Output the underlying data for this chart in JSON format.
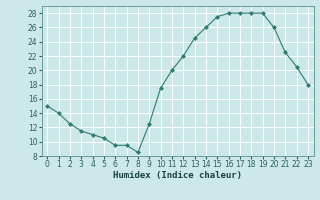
{
  "x": [
    0,
    1,
    2,
    3,
    4,
    5,
    6,
    7,
    8,
    9,
    10,
    11,
    12,
    13,
    14,
    15,
    16,
    17,
    18,
    19,
    20,
    21,
    22,
    23
  ],
  "y": [
    15,
    14,
    12.5,
    11.5,
    11,
    10.5,
    9.5,
    9.5,
    8.5,
    12.5,
    17.5,
    20,
    22,
    24.5,
    26,
    27.5,
    28,
    28,
    28,
    28,
    26,
    22.5,
    20.5,
    18
  ],
  "line_color": "#2e7d6e",
  "marker": "D",
  "marker_size": 2.0,
  "bg_color": "#cce8e8",
  "grid_color": "#b0d8d8",
  "xlabel": "Humidex (Indice chaleur)",
  "xlim": [
    -0.5,
    23.5
  ],
  "ylim": [
    8,
    29
  ],
  "yticks": [
    8,
    10,
    12,
    14,
    16,
    18,
    20,
    22,
    24,
    26,
    28
  ],
  "xticks": [
    0,
    1,
    2,
    3,
    4,
    5,
    6,
    7,
    8,
    9,
    10,
    11,
    12,
    13,
    14,
    15,
    16,
    17,
    18,
    19,
    20,
    21,
    22,
    23
  ],
  "tick_label_fontsize": 5.5,
  "xlabel_fontsize": 6.5
}
